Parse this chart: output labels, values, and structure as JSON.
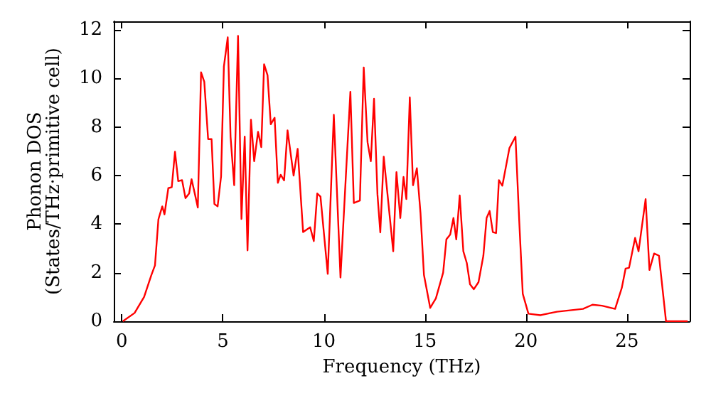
{
  "chart_data": {
    "type": "line",
    "xlabel": "Frequency (THz)",
    "ylabel": "Phonon DOS\n(States/THz·primitive cell)",
    "xlim": [
      -0.4,
      28.1
    ],
    "xticks": [
      0,
      5,
      10,
      15,
      20,
      25
    ],
    "ylim": [
      0,
      12.35
    ],
    "yticks": [
      0,
      2,
      4,
      6,
      8,
      10,
      12
    ],
    "grid": false,
    "marker": "none",
    "line_style": "solid",
    "x": [
      0.05,
      0.63,
      1.1,
      1.46,
      1.64,
      1.81,
      2.0,
      2.11,
      2.3,
      2.47,
      2.63,
      2.79,
      2.98,
      3.15,
      3.33,
      3.45,
      3.62,
      3.76,
      3.92,
      4.08,
      4.27,
      4.44,
      4.58,
      4.74,
      4.91,
      5.05,
      5.24,
      5.38,
      5.56,
      5.75,
      5.92,
      6.08,
      6.22,
      6.39,
      6.55,
      6.74,
      6.9,
      7.04,
      7.21,
      7.37,
      7.56,
      7.72,
      7.86,
      8.03,
      8.2,
      8.5,
      8.7,
      8.97,
      9.32,
      9.5,
      9.67,
      9.83,
      10.19,
      10.49,
      10.82,
      11.15,
      11.31,
      11.48,
      11.78,
      11.97,
      12.16,
      12.32,
      12.48,
      12.65,
      12.79,
      12.96,
      13.43,
      13.59,
      13.78,
      13.94,
      14.08,
      14.25,
      14.41,
      14.6,
      14.78,
      14.95,
      15.26,
      15.54,
      15.9,
      16.06,
      16.25,
      16.41,
      16.55,
      16.72,
      16.9,
      17.07,
      17.23,
      17.42,
      17.65,
      17.89,
      18.05,
      18.2,
      18.36,
      18.52,
      18.66,
      18.83,
      19.18,
      19.48,
      19.67,
      19.84,
      20.12,
      20.71,
      21.53,
      22.82,
      23.29,
      23.76,
      24.41,
      24.74,
      24.93,
      25.1,
      25.4,
      25.57,
      25.92,
      26.11,
      26.34,
      26.58,
      26.93,
      28.0
    ],
    "series": [
      {
        "color": "#ff0000",
        "values": [
          0,
          0.34,
          1.0,
          1.9,
          2.3,
          4.2,
          4.73,
          4.4,
          5.48,
          5.52,
          6.98,
          5.77,
          5.81,
          5.07,
          5.26,
          5.85,
          5.22,
          4.68,
          10.25,
          9.86,
          7.5,
          7.5,
          4.83,
          4.73,
          5.96,
          10.49,
          11.69,
          7.6,
          5.6,
          11.75,
          4.21,
          7.6,
          2.92,
          8.3,
          6.59,
          7.8,
          7.17,
          10.58,
          10.13,
          8.11,
          8.38,
          5.7,
          6.03,
          5.8,
          7.86,
          6.0,
          7.1,
          3.67,
          3.87,
          3.3,
          5.26,
          5.13,
          1.95,
          8.5,
          1.8,
          6.98,
          9.45,
          4.87,
          4.97,
          10.45,
          7.37,
          6.59,
          9.16,
          5.22,
          3.66,
          6.78,
          2.88,
          6.14,
          4.25,
          5.94,
          5.03,
          9.22,
          5.6,
          6.3,
          4.45,
          1.91,
          0.55,
          0.94,
          2.0,
          3.37,
          3.57,
          4.25,
          3.37,
          5.18,
          2.88,
          2.4,
          1.52,
          1.32,
          1.61,
          2.69,
          4.25,
          4.54,
          3.67,
          3.63,
          5.81,
          5.58,
          7.13,
          7.6,
          4.05,
          1.13,
          0.31,
          0.25,
          0.39,
          0.51,
          0.68,
          0.64,
          0.51,
          1.37,
          2.17,
          2.2,
          3.43,
          2.88,
          5.03,
          2.11,
          2.79,
          2.7,
          0,
          0
        ]
      }
    ]
  }
}
